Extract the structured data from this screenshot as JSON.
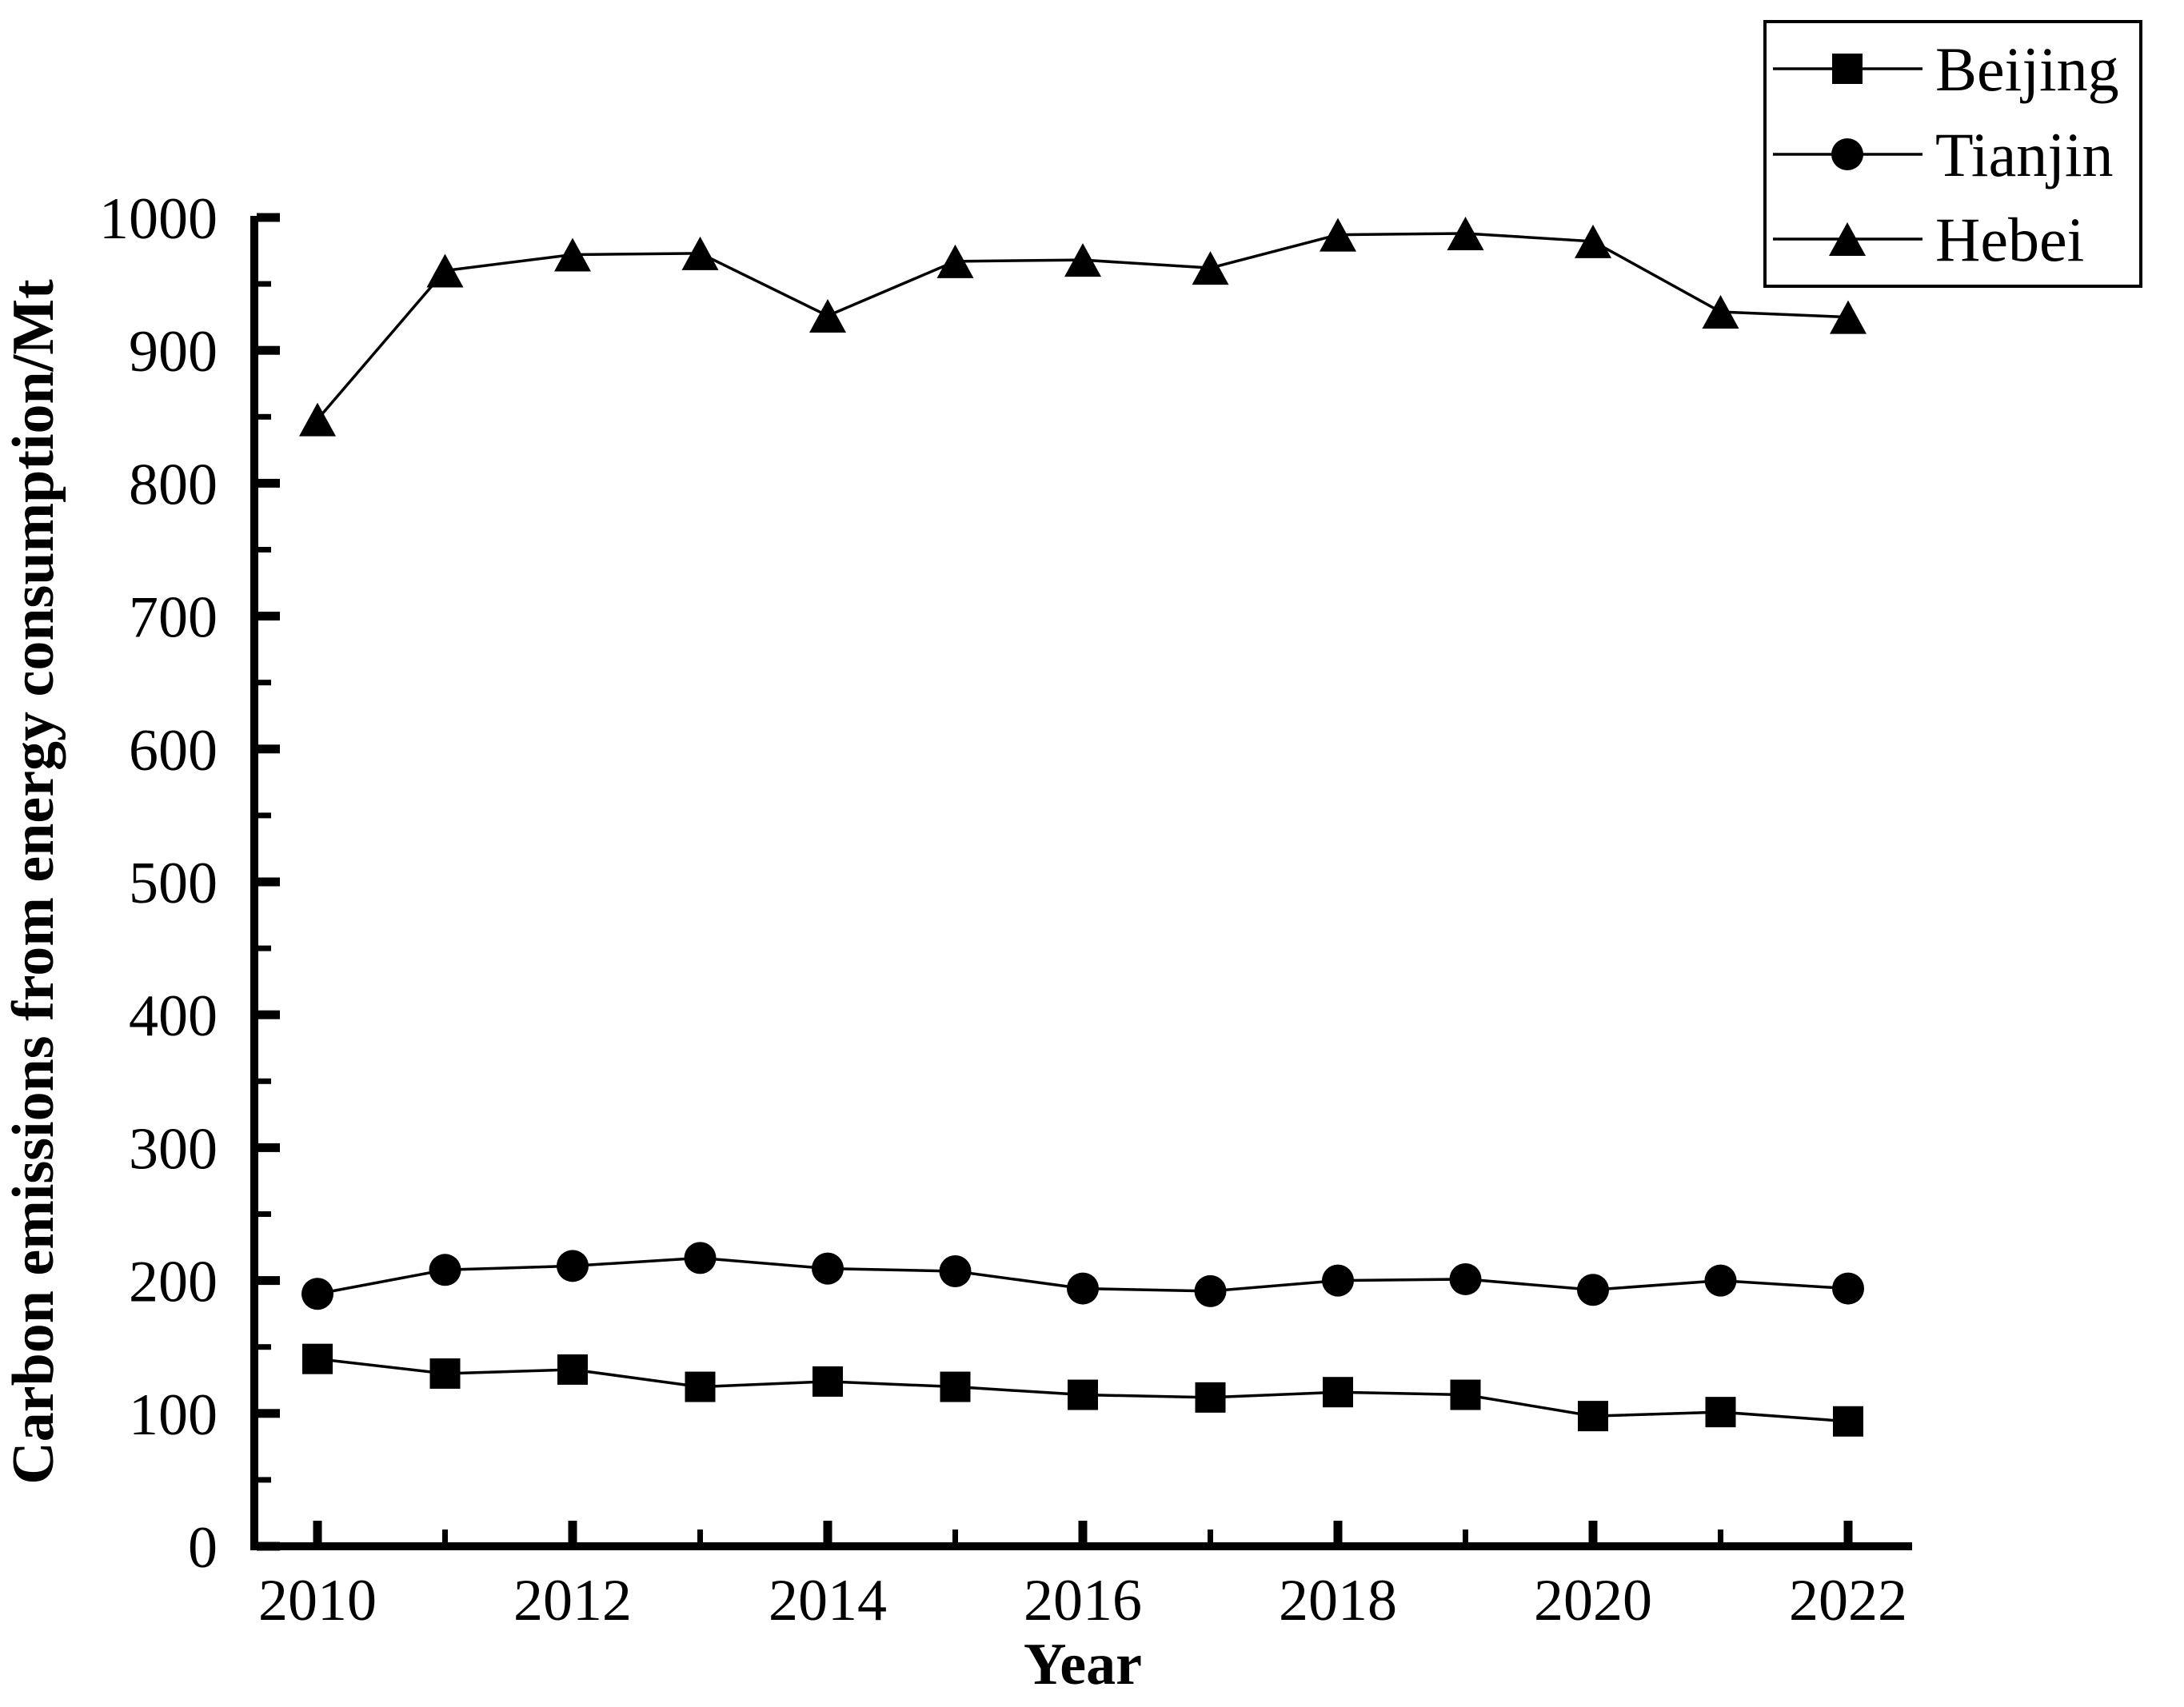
{
  "chart_data": {
    "type": "line",
    "title": "",
    "xlabel": "Year",
    "ylabel": "Carbon emissions from energy consumption/Mt",
    "x": [
      2010,
      2011,
      2012,
      2013,
      2014,
      2015,
      2016,
      2017,
      2018,
      2019,
      2020,
      2021,
      2022
    ],
    "x_major_ticks": [
      2010,
      2012,
      2014,
      2016,
      2018,
      2020,
      2022
    ],
    "x_minor_ticks": [
      2011,
      2013,
      2015,
      2017,
      2019,
      2021
    ],
    "x_tick_labels": [
      "2010",
      "2012",
      "2014",
      "2016",
      "2018",
      "2020",
      "2022"
    ],
    "ylim": [
      0,
      1000
    ],
    "y_major_ticks": [
      0,
      100,
      200,
      300,
      400,
      500,
      600,
      700,
      800,
      900,
      1000
    ],
    "y_tick_labels": [
      "0",
      "100",
      "200",
      "300",
      "400",
      "500",
      "600",
      "700",
      "800",
      "900",
      "1000"
    ],
    "y_minor_ticks": [
      50,
      150,
      250,
      350,
      450,
      550,
      650,
      750,
      850,
      950
    ],
    "grid": false,
    "legend_position": "top-right",
    "colors": {
      "foreground": "#000000",
      "background": "#ffffff"
    },
    "series": [
      {
        "name": "Beijing",
        "marker": "square",
        "values": [
          141,
          130,
          133,
          120,
          124,
          120,
          114,
          112,
          116,
          114,
          98,
          101,
          94
        ]
      },
      {
        "name": "Tianjin",
        "marker": "circle",
        "values": [
          190,
          208,
          211,
          217,
          209,
          207,
          194,
          192,
          200,
          201,
          193,
          200,
          194
        ]
      },
      {
        "name": "Hebei",
        "marker": "triangle",
        "values": [
          848,
          960,
          972,
          973,
          926,
          967,
          968,
          962,
          987,
          988,
          982,
          929,
          925
        ]
      }
    ]
  }
}
